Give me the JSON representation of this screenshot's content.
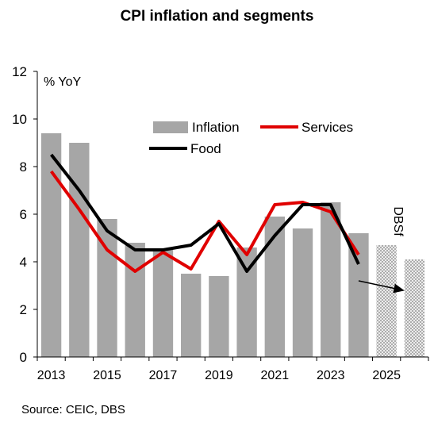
{
  "chart_data": {
    "type": "bar",
    "title": "CPI inflation and segments",
    "ylabel": "% YoY",
    "ylim": [
      0,
      12
    ],
    "yticks": [
      0,
      2,
      4,
      6,
      8,
      10,
      12
    ],
    "x_tick_labels": [
      "2013",
      "2015",
      "2017",
      "2019",
      "2021",
      "2023",
      "2025"
    ],
    "categories": [
      "2013",
      "2014",
      "2015",
      "2016",
      "2017",
      "2018",
      "2019",
      "2020",
      "2021",
      "2022",
      "2023",
      "2024",
      "2025",
      "2026"
    ],
    "series": [
      {
        "name": "Inflation",
        "kind": "bar",
        "color": "#a6a6a6",
        "values": [
          9.4,
          9.0,
          5.8,
          4.8,
          4.5,
          3.5,
          3.4,
          4.6,
          5.9,
          5.4,
          6.5,
          5.2,
          null,
          null
        ]
      },
      {
        "name": "Services",
        "kind": "line",
        "color": "#e00000",
        "values": [
          7.8,
          6.2,
          4.5,
          3.6,
          4.4,
          3.7,
          5.7,
          4.3,
          6.4,
          6.5,
          6.1,
          4.3,
          null,
          null
        ]
      },
      {
        "name": "Food",
        "kind": "line",
        "color": "#000000",
        "values": [
          8.5,
          7.0,
          5.3,
          4.5,
          4.5,
          4.7,
          5.6,
          3.6,
          5.1,
          6.4,
          6.4,
          3.9,
          null,
          null
        ]
      }
    ],
    "forecast": {
      "label": "DBSf",
      "categories": [
        "2025",
        "2026"
      ],
      "values": [
        4.7,
        4.1
      ]
    },
    "arrow": {
      "from": [
        2024,
        3.2
      ],
      "to": [
        2025.6,
        2.8
      ]
    },
    "legend_position": "top-right",
    "grid": false
  },
  "source_text": "Source: CEIC, DBS"
}
